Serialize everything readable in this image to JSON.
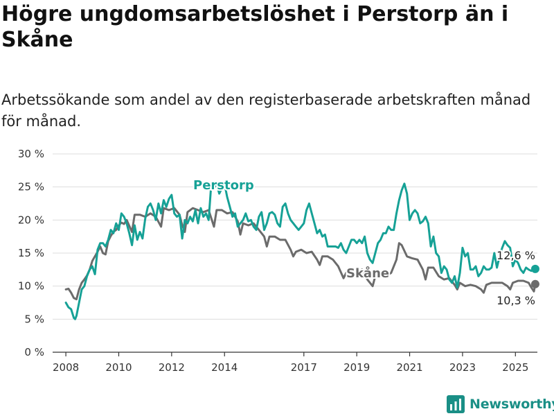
{
  "title": "Högre ungdomsarbetslöshet i Perstorp än i Skåne",
  "subtitle": "Arbetssökande som andel av den registerbaserade arbetskraften månad för månad.",
  "brand": "Newsworthy",
  "colors": {
    "perstorp": "#16a196",
    "skane": "#6b6b6b",
    "grid": "#dddddd",
    "axis": "#333333",
    "brand": "#1a8f86"
  },
  "chart_data": {
    "type": "line",
    "ylim": [
      0,
      30
    ],
    "xlim": [
      2007.5,
      2025.83
    ],
    "y_ticks": [
      0,
      5,
      10,
      15,
      20,
      25,
      30
    ],
    "y_tick_labels": [
      "0 %",
      "5 %",
      "10 %",
      "15 %",
      "20 %",
      "25 %",
      "30 %"
    ],
    "x_ticks": [
      2008,
      2010,
      2012,
      2014,
      2017,
      2019,
      2021,
      2023,
      2025
    ],
    "x_tick_labels": [
      "2008",
      "2010",
      "2012",
      "2014",
      "2017",
      "2019",
      "2021",
      "2023",
      "2025"
    ],
    "grid": true,
    "series": [
      {
        "name": "Skåne",
        "end_label": "10,3 %",
        "points": [
          [
            2008.0,
            9.5
          ],
          [
            2008.1,
            9.6
          ],
          [
            2008.2,
            9.0
          ],
          [
            2008.3,
            8.2
          ],
          [
            2008.4,
            8.0
          ],
          [
            2008.5,
            9.5
          ],
          [
            2008.6,
            10.5
          ],
          [
            2008.7,
            11.0
          ],
          [
            2008.8,
            11.6
          ],
          [
            2008.9,
            12.5
          ],
          [
            2009.0,
            13.8
          ],
          [
            2009.1,
            14.5
          ],
          [
            2009.2,
            15.2
          ],
          [
            2009.3,
            16.0
          ],
          [
            2009.4,
            15.0
          ],
          [
            2009.5,
            14.8
          ],
          [
            2009.6,
            16.8
          ],
          [
            2009.7,
            17.6
          ],
          [
            2009.8,
            18.2
          ],
          [
            2009.9,
            18.5
          ],
          [
            2010.0,
            19.2
          ],
          [
            2010.1,
            19.6
          ],
          [
            2010.2,
            19.4
          ],
          [
            2010.3,
            20.0
          ],
          [
            2010.5,
            18.2
          ],
          [
            2010.6,
            20.8
          ],
          [
            2010.8,
            20.8
          ],
          [
            2011.0,
            20.5
          ],
          [
            2011.2,
            21.0
          ],
          [
            2011.4,
            20.5
          ],
          [
            2011.6,
            19.0
          ],
          [
            2011.7,
            21.8
          ],
          [
            2011.9,
            21.5
          ],
          [
            2012.1,
            21.8
          ],
          [
            2012.3,
            20.8
          ],
          [
            2012.4,
            19.2
          ],
          [
            2012.5,
            18.2
          ],
          [
            2012.6,
            21.2
          ],
          [
            2012.8,
            21.8
          ],
          [
            2013.0,
            21.5
          ],
          [
            2013.2,
            21.2
          ],
          [
            2013.4,
            21.5
          ],
          [
            2013.6,
            19.0
          ],
          [
            2013.7,
            21.5
          ],
          [
            2013.9,
            21.5
          ],
          [
            2014.1,
            21.0
          ],
          [
            2014.3,
            21.2
          ],
          [
            2014.5,
            19.8
          ],
          [
            2014.6,
            17.8
          ],
          [
            2014.7,
            19.5
          ],
          [
            2014.9,
            19.2
          ],
          [
            2015.1,
            19.5
          ],
          [
            2015.3,
            18.5
          ],
          [
            2015.5,
            17.5
          ],
          [
            2015.6,
            16.0
          ],
          [
            2015.7,
            17.5
          ],
          [
            2015.9,
            17.5
          ],
          [
            2016.1,
            17.0
          ],
          [
            2016.3,
            17.0
          ],
          [
            2016.5,
            15.5
          ],
          [
            2016.6,
            14.5
          ],
          [
            2016.7,
            15.2
          ],
          [
            2016.9,
            15.5
          ],
          [
            2017.1,
            15.0
          ],
          [
            2017.3,
            15.2
          ],
          [
            2017.5,
            14.0
          ],
          [
            2017.6,
            13.2
          ],
          [
            2017.7,
            14.5
          ],
          [
            2017.9,
            14.5
          ],
          [
            2018.1,
            14.0
          ],
          [
            2018.3,
            13.0
          ],
          [
            2018.5,
            11.2
          ],
          [
            2018.6,
            12.0
          ],
          [
            2018.8,
            12.5
          ],
          [
            2019.0,
            12.0
          ],
          [
            2019.2,
            12.5
          ],
          [
            2019.4,
            11.0
          ],
          [
            2019.6,
            10.0
          ],
          [
            2019.7,
            11.5
          ],
          [
            2019.9,
            12.0
          ],
          [
            2020.1,
            11.5
          ],
          [
            2020.3,
            12.0
          ],
          [
            2020.5,
            14.0
          ],
          [
            2020.6,
            16.5
          ],
          [
            2020.7,
            16.2
          ],
          [
            2020.9,
            14.5
          ],
          [
            2021.1,
            14.2
          ],
          [
            2021.3,
            14.0
          ],
          [
            2021.5,
            12.5
          ],
          [
            2021.6,
            11.0
          ],
          [
            2021.7,
            12.8
          ],
          [
            2021.9,
            12.8
          ],
          [
            2022.1,
            11.5
          ],
          [
            2022.3,
            11.0
          ],
          [
            2022.5,
            11.2
          ],
          [
            2022.7,
            10.2
          ],
          [
            2022.8,
            9.5
          ],
          [
            2022.9,
            10.5
          ],
          [
            2023.1,
            10.0
          ],
          [
            2023.3,
            10.2
          ],
          [
            2023.5,
            10.0
          ],
          [
            2023.7,
            9.5
          ],
          [
            2023.8,
            9.0
          ],
          [
            2023.9,
            10.2
          ],
          [
            2024.1,
            10.5
          ],
          [
            2024.3,
            10.5
          ],
          [
            2024.5,
            10.5
          ],
          [
            2024.7,
            10.0
          ],
          [
            2024.8,
            9.5
          ],
          [
            2024.9,
            10.5
          ],
          [
            2025.1,
            10.8
          ],
          [
            2025.3,
            10.8
          ],
          [
            2025.5,
            10.5
          ],
          [
            2025.6,
            9.8
          ],
          [
            2025.7,
            9.2
          ],
          [
            2025.75,
            10.3
          ]
        ]
      },
      {
        "name": "Perstorp",
        "end_label": "12,6 %",
        "points": [
          [
            2008.0,
            7.5
          ],
          [
            2008.1,
            6.8
          ],
          [
            2008.2,
            6.5
          ],
          [
            2008.3,
            5.2
          ],
          [
            2008.35,
            5.0
          ],
          [
            2008.4,
            5.5
          ],
          [
            2008.5,
            7.5
          ],
          [
            2008.6,
            9.5
          ],
          [
            2008.7,
            10.0
          ],
          [
            2008.8,
            11.5
          ],
          [
            2008.9,
            12.5
          ],
          [
            2009.0,
            13.0
          ],
          [
            2009.1,
            11.8
          ],
          [
            2009.2,
            15.5
          ],
          [
            2009.3,
            16.5
          ],
          [
            2009.4,
            16.5
          ],
          [
            2009.5,
            16.0
          ],
          [
            2009.6,
            17.0
          ],
          [
            2009.7,
            18.5
          ],
          [
            2009.8,
            18.0
          ],
          [
            2009.9,
            19.5
          ],
          [
            2010.0,
            18.5
          ],
          [
            2010.1,
            21.0
          ],
          [
            2010.2,
            20.5
          ],
          [
            2010.3,
            19.5
          ],
          [
            2010.4,
            18.0
          ],
          [
            2010.5,
            16.2
          ],
          [
            2010.6,
            19.2
          ],
          [
            2010.7,
            17.0
          ],
          [
            2010.8,
            18.2
          ],
          [
            2010.9,
            17.2
          ],
          [
            2011.0,
            20.2
          ],
          [
            2011.1,
            22.0
          ],
          [
            2011.2,
            22.5
          ],
          [
            2011.3,
            21.5
          ],
          [
            2011.4,
            20.0
          ],
          [
            2011.5,
            22.5
          ],
          [
            2011.6,
            21.0
          ],
          [
            2011.7,
            23.0
          ],
          [
            2011.8,
            22.0
          ],
          [
            2011.9,
            23.2
          ],
          [
            2012.0,
            23.8
          ],
          [
            2012.1,
            21.0
          ],
          [
            2012.2,
            20.5
          ],
          [
            2012.3,
            20.8
          ],
          [
            2012.4,
            17.2
          ],
          [
            2012.5,
            20.0
          ],
          [
            2012.6,
            19.5
          ],
          [
            2012.7,
            20.5
          ],
          [
            2012.8,
            19.8
          ],
          [
            2012.9,
            21.5
          ],
          [
            2013.0,
            19.5
          ],
          [
            2013.1,
            21.8
          ],
          [
            2013.2,
            20.5
          ],
          [
            2013.3,
            21.0
          ],
          [
            2013.4,
            20.0
          ],
          [
            2013.5,
            25.5
          ],
          [
            2013.6,
            24.8
          ],
          [
            2013.7,
            25.5
          ],
          [
            2013.8,
            24.0
          ],
          [
            2013.9,
            24.8
          ],
          [
            2014.0,
            25.5
          ],
          [
            2014.1,
            23.5
          ],
          [
            2014.2,
            22.0
          ],
          [
            2014.3,
            20.5
          ],
          [
            2014.4,
            21.0
          ],
          [
            2014.5,
            19.0
          ],
          [
            2014.6,
            19.5
          ],
          [
            2014.7,
            20.0
          ],
          [
            2014.8,
            21.0
          ],
          [
            2014.9,
            19.8
          ],
          [
            2015.0,
            20.0
          ],
          [
            2015.1,
            19.0
          ],
          [
            2015.2,
            18.5
          ],
          [
            2015.3,
            20.5
          ],
          [
            2015.4,
            21.2
          ],
          [
            2015.5,
            18.5
          ],
          [
            2015.6,
            19.5
          ],
          [
            2015.7,
            21.0
          ],
          [
            2015.8,
            21.2
          ],
          [
            2015.9,
            20.8
          ],
          [
            2016.0,
            19.5
          ],
          [
            2016.1,
            19.0
          ],
          [
            2016.2,
            22.0
          ],
          [
            2016.3,
            22.5
          ],
          [
            2016.4,
            21.0
          ],
          [
            2016.5,
            20.0
          ],
          [
            2016.6,
            19.5
          ],
          [
            2016.7,
            19.0
          ],
          [
            2016.8,
            18.5
          ],
          [
            2016.9,
            19.0
          ],
          [
            2017.0,
            19.5
          ],
          [
            2017.1,
            21.5
          ],
          [
            2017.2,
            22.5
          ],
          [
            2017.3,
            21.0
          ],
          [
            2017.4,
            19.5
          ],
          [
            2017.5,
            18.0
          ],
          [
            2017.6,
            18.5
          ],
          [
            2017.7,
            17.5
          ],
          [
            2017.8,
            17.8
          ],
          [
            2017.9,
            16.0
          ],
          [
            2018.0,
            16.0
          ],
          [
            2018.2,
            16.0
          ],
          [
            2018.3,
            15.8
          ],
          [
            2018.4,
            16.5
          ],
          [
            2018.5,
            15.5
          ],
          [
            2018.6,
            15.0
          ],
          [
            2018.7,
            16.0
          ],
          [
            2018.8,
            17.0
          ],
          [
            2018.9,
            17.0
          ],
          [
            2019.0,
            16.5
          ],
          [
            2019.1,
            17.0
          ],
          [
            2019.2,
            16.5
          ],
          [
            2019.3,
            17.5
          ],
          [
            2019.4,
            15.0
          ],
          [
            2019.5,
            14.0
          ],
          [
            2019.6,
            13.5
          ],
          [
            2019.7,
            15.0
          ],
          [
            2019.8,
            16.5
          ],
          [
            2019.9,
            17.0
          ],
          [
            2020.0,
            18.0
          ],
          [
            2020.1,
            18.0
          ],
          [
            2020.2,
            19.0
          ],
          [
            2020.3,
            18.5
          ],
          [
            2020.4,
            18.5
          ],
          [
            2020.5,
            21.0
          ],
          [
            2020.6,
            23.0
          ],
          [
            2020.7,
            24.5
          ],
          [
            2020.8,
            25.5
          ],
          [
            2020.9,
            24.0
          ],
          [
            2021.0,
            20.0
          ],
          [
            2021.1,
            21.0
          ],
          [
            2021.2,
            21.5
          ],
          [
            2021.3,
            21.0
          ],
          [
            2021.4,
            19.5
          ],
          [
            2021.5,
            19.8
          ],
          [
            2021.6,
            20.5
          ],
          [
            2021.7,
            19.5
          ],
          [
            2021.8,
            16.0
          ],
          [
            2021.9,
            17.5
          ],
          [
            2022.0,
            15.0
          ],
          [
            2022.1,
            14.5
          ],
          [
            2022.2,
            12.0
          ],
          [
            2022.3,
            13.0
          ],
          [
            2022.4,
            12.5
          ],
          [
            2022.5,
            11.0
          ],
          [
            2022.6,
            10.5
          ],
          [
            2022.7,
            11.5
          ],
          [
            2022.8,
            9.8
          ],
          [
            2022.9,
            12.0
          ],
          [
            2023.0,
            15.8
          ],
          [
            2023.1,
            14.5
          ],
          [
            2023.2,
            15.0
          ],
          [
            2023.3,
            12.5
          ],
          [
            2023.4,
            12.5
          ],
          [
            2023.5,
            13.0
          ],
          [
            2023.6,
            11.5
          ],
          [
            2023.7,
            12.0
          ],
          [
            2023.8,
            13.0
          ],
          [
            2023.9,
            12.5
          ],
          [
            2024.0,
            12.5
          ],
          [
            2024.1,
            12.8
          ],
          [
            2024.2,
            15.0
          ],
          [
            2024.3,
            12.8
          ],
          [
            2024.4,
            14.5
          ],
          [
            2024.5,
            15.8
          ],
          [
            2024.6,
            16.8
          ],
          [
            2024.7,
            16.2
          ],
          [
            2024.8,
            15.8
          ],
          [
            2024.9,
            13.0
          ],
          [
            2025.0,
            14.0
          ],
          [
            2025.1,
            13.5
          ],
          [
            2025.2,
            12.5
          ],
          [
            2025.3,
            12.0
          ],
          [
            2025.4,
            12.8
          ],
          [
            2025.5,
            12.5
          ],
          [
            2025.6,
            12.3
          ],
          [
            2025.75,
            12.6
          ]
        ]
      }
    ]
  }
}
